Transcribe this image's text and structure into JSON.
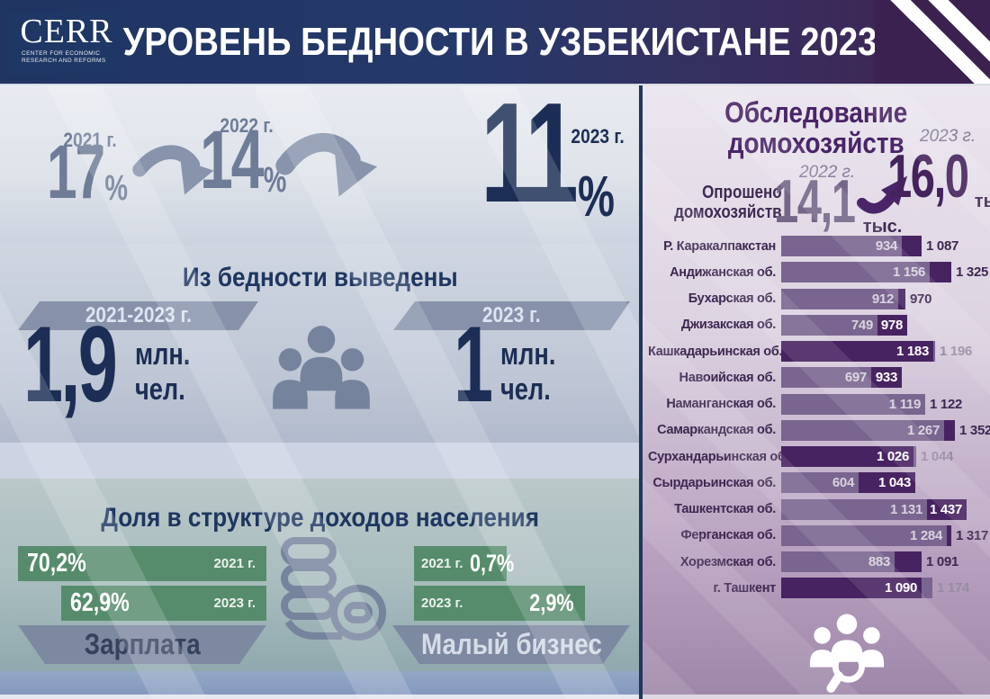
{
  "header": {
    "logo": "CERR",
    "logo_sub": "CENTER FOR ECONOMIC RESEARCH AND REFORMS",
    "title": "УРОВЕНЬ БЕДНОСТИ В УЗБЕКИСТАНЕ 2023"
  },
  "trend": {
    "pct": "%",
    "items": [
      {
        "year": "2021 г.",
        "value": "17"
      },
      {
        "year": "2022 г.",
        "value": "14"
      },
      {
        "year": "2023 г.",
        "value": "11"
      }
    ]
  },
  "lifted": {
    "title": "Из бедности выведены",
    "left": {
      "period": "2021-2023 г.",
      "value": "1,9",
      "unit1": "млн.",
      "unit2": "чел."
    },
    "right": {
      "period": "2023 г.",
      "value": "1",
      "unit1": "млн.",
      "unit2": "чел."
    }
  },
  "income": {
    "title": "Доля в структуре доходов населения",
    "salary": {
      "label": "Зарплата",
      "rows": [
        {
          "year": "2021 г.",
          "value": "70,2%"
        },
        {
          "year": "2023 г.",
          "value": "62,9%"
        }
      ]
    },
    "business": {
      "label": "Малый бизнес",
      "rows": [
        {
          "year": "2021 г.",
          "value": "0,7%"
        },
        {
          "year": "2023 г.",
          "value": "2,9%"
        }
      ]
    }
  },
  "survey": {
    "title1": "Обследование",
    "title2": "домохозяйств",
    "label1": "Опрошено",
    "label2": "домохозяйств",
    "s2022": {
      "year": "2022 г.",
      "value": "14,1",
      "unit": "тыс."
    },
    "s2023": {
      "year": "2023 г.",
      "value": "16,0",
      "unit": "тыс."
    },
    "regions": [
      {
        "name": "Р. Каракалпакстан",
        "v2022": 934,
        "v2023": 1087,
        "l2022": "934",
        "l2023": "1 087",
        "inside": false
      },
      {
        "name": "Андижанская об.",
        "v2022": 1156,
        "v2023": 1325,
        "l2022": "1 156",
        "l2023": "1 325",
        "inside": false
      },
      {
        "name": "Бухарская об.",
        "v2022": 912,
        "v2023": 970,
        "l2022": "912",
        "l2023": "970",
        "inside": false
      },
      {
        "name": "Джизакская об.",
        "v2022": 749,
        "v2023": 978,
        "l2022": "749",
        "l2023": "978",
        "inside": true
      },
      {
        "name": "Кашкадарьинская об.",
        "v2022": 1196,
        "v2023": 1183,
        "l2022": "1 196",
        "l2023": "1 183",
        "inside": false
      },
      {
        "name": "Навоийская об.",
        "v2022": 697,
        "v2023": 933,
        "l2022": "697",
        "l2023": "933",
        "inside": true
      },
      {
        "name": "Наманганская об.",
        "v2022": 1119,
        "v2023": 1122,
        "l2022": "1 119",
        "l2023": "1 122",
        "inside": false
      },
      {
        "name": "Самаркандская об.",
        "v2022": 1267,
        "v2023": 1352,
        "l2022": "1 267",
        "l2023": "1 352",
        "inside": false
      },
      {
        "name": "Сурхандарьинская об.",
        "v2022": 1044,
        "v2023": 1026,
        "l2022": "1 044",
        "l2023": "1 026",
        "inside": false
      },
      {
        "name": "Сырдарьинская об.",
        "v2022": 604,
        "v2023": 1043,
        "l2022": "604",
        "l2023": "1 043",
        "inside": true
      },
      {
        "name": "Ташкентская об.",
        "v2022": 1131,
        "v2023": 1437,
        "l2022": "1 131",
        "l2023": "1 437",
        "inside": true
      },
      {
        "name": "Ферганская об.",
        "v2022": 1284,
        "v2023": 1317,
        "l2022": "1 284",
        "l2023": "1 317",
        "inside": false
      },
      {
        "name": "Хорезмская об.",
        "v2022": 883,
        "v2023": 1091,
        "l2022": "883",
        "l2023": "1 091",
        "inside": false
      },
      {
        "name": "г. Ташкент",
        "v2022": 1174,
        "v2023": 1090,
        "l2022": "1 174",
        "l2023": "1 090",
        "inside": false
      }
    ]
  },
  "colors": {
    "navy": "#1c2e55",
    "header_navy": "#203462",
    "header_purple": "#422353",
    "gray_blue": "#6e7c98",
    "banner_gray": "#8792aa",
    "green": "#568c6c",
    "purple_dark": "#482361",
    "purple_light": "#7a6590",
    "purple_title": "#4a2468",
    "gray_label": "#958ca4"
  },
  "chart_data": [
    {
      "type": "bar",
      "title": "Уровень бедности в Узбекистане",
      "categories": [
        "2021",
        "2022",
        "2023"
      ],
      "values": [
        17,
        14,
        11
      ],
      "ylabel": "%"
    },
    {
      "type": "bar",
      "title": "Из бедности выведены (млн. чел.)",
      "categories": [
        "2021-2023",
        "2023"
      ],
      "values": [
        1.9,
        1
      ]
    },
    {
      "type": "bar",
      "title": "Доля в структуре доходов населения (%)",
      "categories": [
        "2021",
        "2023"
      ],
      "series": [
        {
          "name": "Зарплата",
          "values": [
            70.2,
            62.9
          ]
        },
        {
          "name": "Малый бизнес",
          "values": [
            0.7,
            2.9
          ]
        }
      ]
    },
    {
      "type": "bar",
      "title": "Опрошено домохозяйств (тыс.)",
      "categories": [
        "2022",
        "2023"
      ],
      "values": [
        14.1,
        16.0
      ]
    },
    {
      "type": "bar",
      "orientation": "horizontal",
      "title": "Обследование домохозяйств по регионам",
      "categories": [
        "Р. Каракалпакстан",
        "Андижанская об.",
        "Бухарская об.",
        "Джизакская об.",
        "Кашкадарьинская об.",
        "Навоийская об.",
        "Наманганская об.",
        "Самаркандская об.",
        "Сурхандарьинская об.",
        "Сырдарьинская об.",
        "Ташкентская об.",
        "Ферганская об.",
        "Хорезмская об.",
        "г. Ташкент"
      ],
      "series": [
        {
          "name": "2022",
          "values": [
            934,
            1156,
            912,
            749,
            1196,
            697,
            1119,
            1267,
            1044,
            604,
            1131,
            1284,
            883,
            1174
          ]
        },
        {
          "name": "2023",
          "values": [
            1087,
            1325,
            970,
            978,
            1183,
            933,
            1122,
            1352,
            1026,
            1043,
            1437,
            1317,
            1091,
            1090
          ]
        }
      ],
      "xlim": [
        0,
        1500
      ],
      "legend_position": "none",
      "grid": false
    }
  ]
}
